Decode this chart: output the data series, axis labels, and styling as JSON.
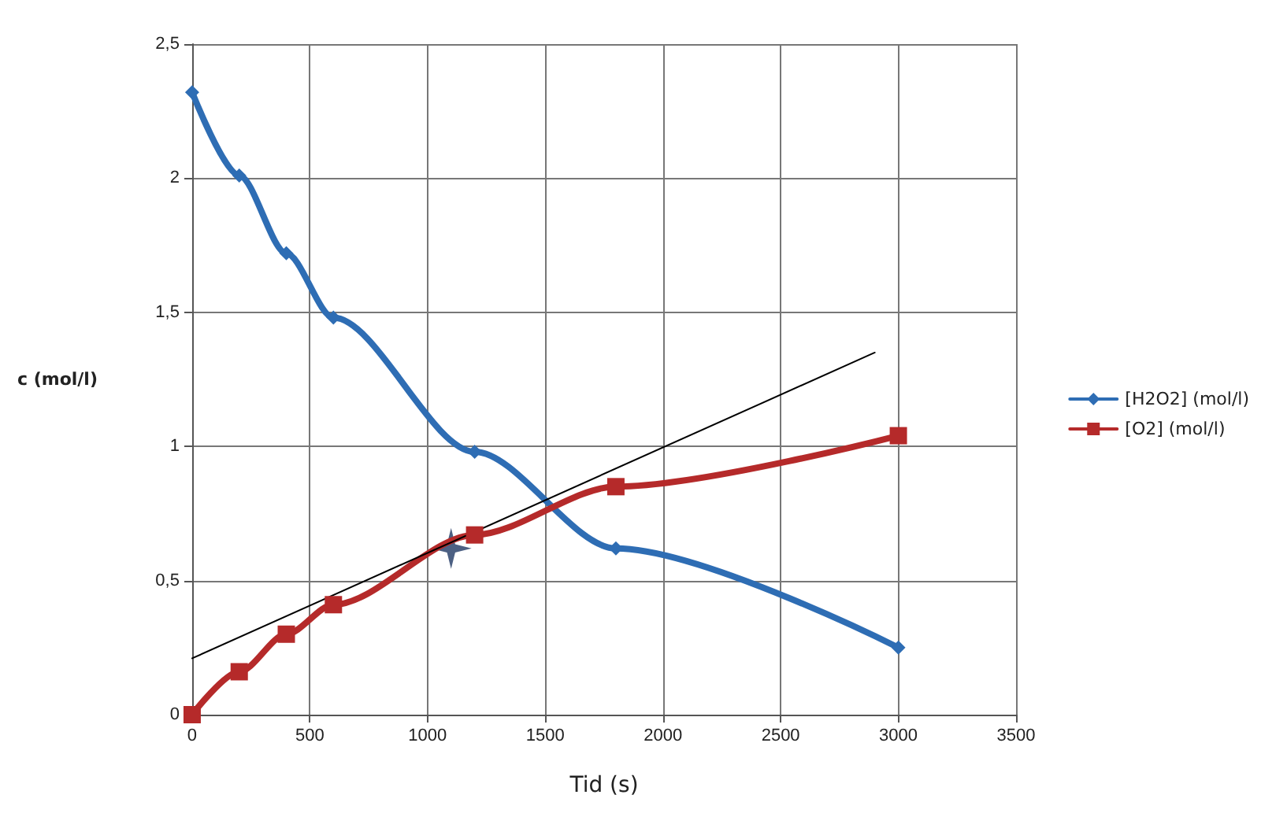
{
  "chart_data": {
    "type": "line",
    "xlabel": "Tid (s)",
    "ylabel": "c (mol/l)",
    "xlim": [
      0,
      3500
    ],
    "xticks": [
      0,
      500,
      1000,
      1500,
      2000,
      2500,
      3000,
      3500
    ],
    "ylim": [
      0,
      2.5
    ],
    "yticks": [
      0,
      {
        "value": 0.5,
        "label": "0,5"
      },
      1,
      {
        "value": 1.5,
        "label": "1,5"
      },
      2,
      {
        "value": 2.5,
        "label": "2,5"
      }
    ],
    "grid": true,
    "legend": "right",
    "line_style": "solid",
    "series": [
      {
        "name": "[H2O2] (mol/l)",
        "color": "#2e6db4",
        "marker": "diamond",
        "x": [
          0,
          200,
          400,
          600,
          1200,
          1800,
          3000
        ],
        "values": [
          2.32,
          2.01,
          1.72,
          1.48,
          0.98,
          0.62,
          0.25
        ]
      },
      {
        "name": "[O2] (mol/l)",
        "color": "#b52a2a",
        "marker": "square",
        "x": [
          0,
          200,
          400,
          600,
          1200,
          1800,
          3000
        ],
        "values": [
          0,
          0.16,
          0.3,
          0.41,
          0.67,
          0.85,
          1.04
        ]
      },
      {
        "color": "#000000",
        "marker": "none",
        "x": [
          0,
          2900
        ],
        "values": [
          0.21,
          1.35
        ]
      },
      {
        "type": "scatter",
        "color": "#1f3864",
        "marker": "star",
        "x": [
          1100
        ],
        "values": [
          0.62
        ]
      }
    ]
  }
}
